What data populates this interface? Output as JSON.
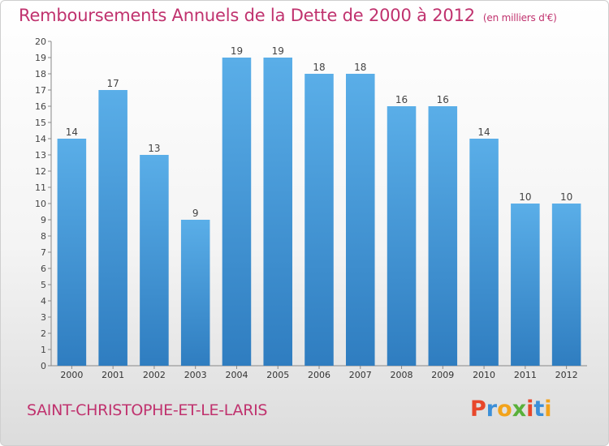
{
  "header": {
    "title": "Remboursements Annuels de la Dette de 2000 à 2012",
    "unit": "(en milliers d'€)"
  },
  "footer": {
    "commune": "SAINT-CHRISTOPHE-ET-LE-LARIS",
    "logo_letters": [
      "P",
      "r",
      "o",
      "x",
      "i",
      "t",
      "i"
    ],
    "logo_colors": [
      "#e8472b",
      "#3c8fd8",
      "#f2a31b",
      "#59b03a",
      "#e8472b",
      "#3c8fd8",
      "#f2a31b"
    ]
  },
  "chart_data": {
    "type": "bar",
    "title": "Remboursements Annuels de la Dette de 2000 à 2012",
    "unit": "(en milliers d'€)",
    "categories": [
      "2000",
      "2001",
      "2002",
      "2003",
      "2004",
      "2005",
      "2006",
      "2007",
      "2008",
      "2009",
      "2010",
      "2011",
      "2012"
    ],
    "values": [
      14,
      17,
      13,
      9,
      19,
      19,
      18,
      18,
      16,
      16,
      14,
      10,
      10
    ],
    "ylim": [
      0,
      20
    ],
    "yticks": [
      0,
      1,
      2,
      3,
      4,
      5,
      6,
      7,
      8,
      9,
      10,
      11,
      12,
      13,
      14,
      15,
      16,
      17,
      18,
      19,
      20
    ],
    "grid": false,
    "bar_color_top": "#5aaee8",
    "bar_color_bottom": "#2f7dc0",
    "label_color": "#444444"
  }
}
